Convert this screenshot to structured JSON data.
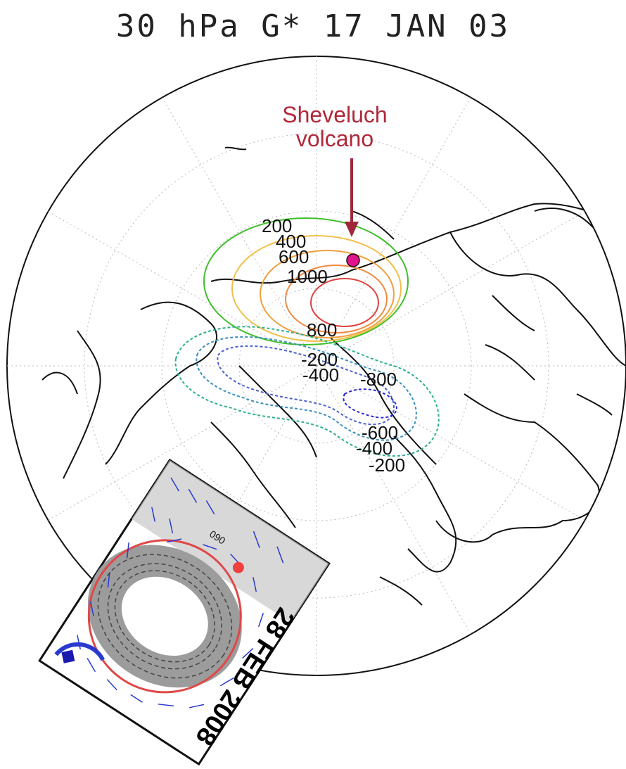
{
  "map": {
    "title": "30 hPa G* 17 JAN 03",
    "volcano_label_line1": "Sheveluch",
    "volcano_label_line2": "volcano",
    "marker_color": "#e0148c",
    "arrow_color": "#a0283a",
    "positive_contours": [
      {
        "value": 200,
        "label": "200",
        "color": "#3fbf2a"
      },
      {
        "value": 400,
        "label": "400",
        "color": "#f2c04a"
      },
      {
        "value": 600,
        "label": "600",
        "color": "#f0a040"
      },
      {
        "value": 800,
        "label": "800",
        "color": "#f08a40"
      },
      {
        "value": 1000,
        "label": "1000",
        "color": "#e04040"
      }
    ],
    "negative_contours": [
      {
        "value": -200,
        "label": "-200",
        "color": "#2ab090"
      },
      {
        "value": -400,
        "label": "-400",
        "color": "#3a8fc0"
      },
      {
        "value": -600,
        "label": "-600",
        "color": "#4a60d0"
      },
      {
        "value": -800,
        "label": "-800",
        "color": "#2a2ad0"
      }
    ]
  },
  "inset": {
    "date": "28 FEB 2008",
    "contour_label": "090",
    "circle_color": "#e04848",
    "vector_color": "#2a3ad0",
    "marker_color": "#f04040"
  }
}
